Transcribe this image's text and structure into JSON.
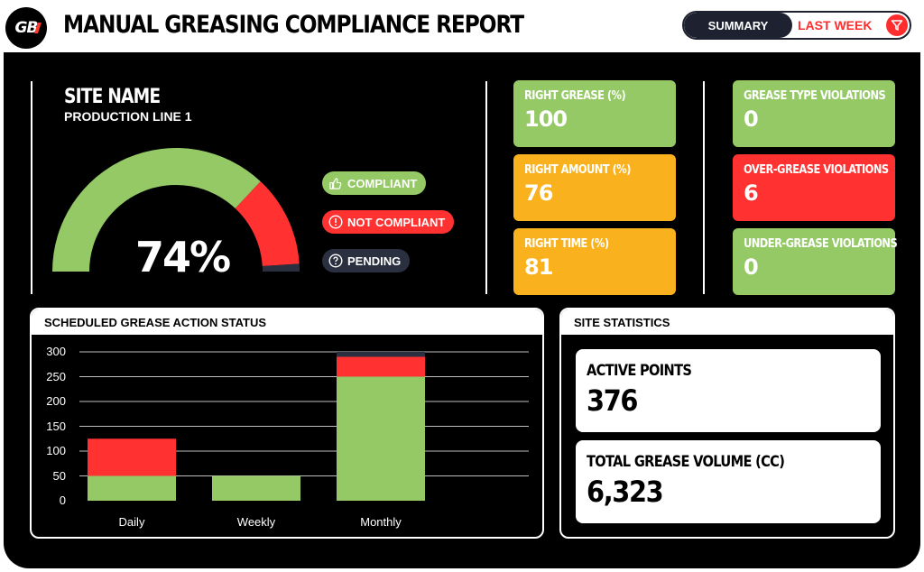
{
  "header": {
    "logo_text": "GB",
    "title": "MANUAL GREASING COMPLIANCE REPORT",
    "toggle": {
      "summary_label": "SUMMARY",
      "period_label": "LAST WEEK"
    }
  },
  "site": {
    "title": "SITE NAME",
    "name": "PRODUCTION LINE 1"
  },
  "gauge": {
    "value_label": "74%",
    "compliant_fraction": 0.74,
    "not_compliant_fraction": 0.24,
    "pending_fraction": 0.02,
    "colors": {
      "compliant": "#94c966",
      "not_compliant": "#ff3131",
      "pending": "#2b3040"
    }
  },
  "legend": {
    "compliant": "COMPLIANT",
    "not_compliant": "NOT COMPLIANT",
    "pending": "PENDING"
  },
  "metrics": [
    {
      "label": "RIGHT GREASE (%)",
      "value": "100",
      "color": "green"
    },
    {
      "label": "RIGHT AMOUNT (%)",
      "value": "76",
      "color": "orange"
    },
    {
      "label": "RIGHT TIME (%)",
      "value": "81",
      "color": "orange"
    }
  ],
  "violations": [
    {
      "label": "GREASE TYPE VIOLATIONS",
      "value": "0",
      "color": "green"
    },
    {
      "label": "OVER-GREASE VIOLATIONS",
      "value": "6",
      "color": "red"
    },
    {
      "label": "UNDER-GREASE VIOLATIONS",
      "value": "0",
      "color": "green"
    }
  ],
  "schedule_panel": {
    "title": "SCHEDULED GREASE ACTION STATUS"
  },
  "chart_data": {
    "type": "bar",
    "stacked": true,
    "categories": [
      "Daily",
      "Weekly",
      "Monthly"
    ],
    "series": [
      {
        "color": "#94c966",
        "values": [
          50,
          50,
          250
        ]
      },
      {
        "color": "#ff3131",
        "values": [
          75,
          0,
          40
        ]
      },
      {
        "color": "#2b3040",
        "values": [
          0,
          0,
          10
        ]
      }
    ],
    "yticks": [
      "300",
      "250",
      "200",
      "150",
      "100",
      "50",
      "0"
    ],
    "ylim": [
      0,
      300
    ],
    "grid": true
  },
  "stats_panel": {
    "title": "SITE STATISTICS",
    "active_points_label": "ACTIVE POINTS",
    "active_points_value": "376",
    "volume_label": "TOTAL GREASE VOLUME (CC)",
    "volume_value": "6,323"
  }
}
